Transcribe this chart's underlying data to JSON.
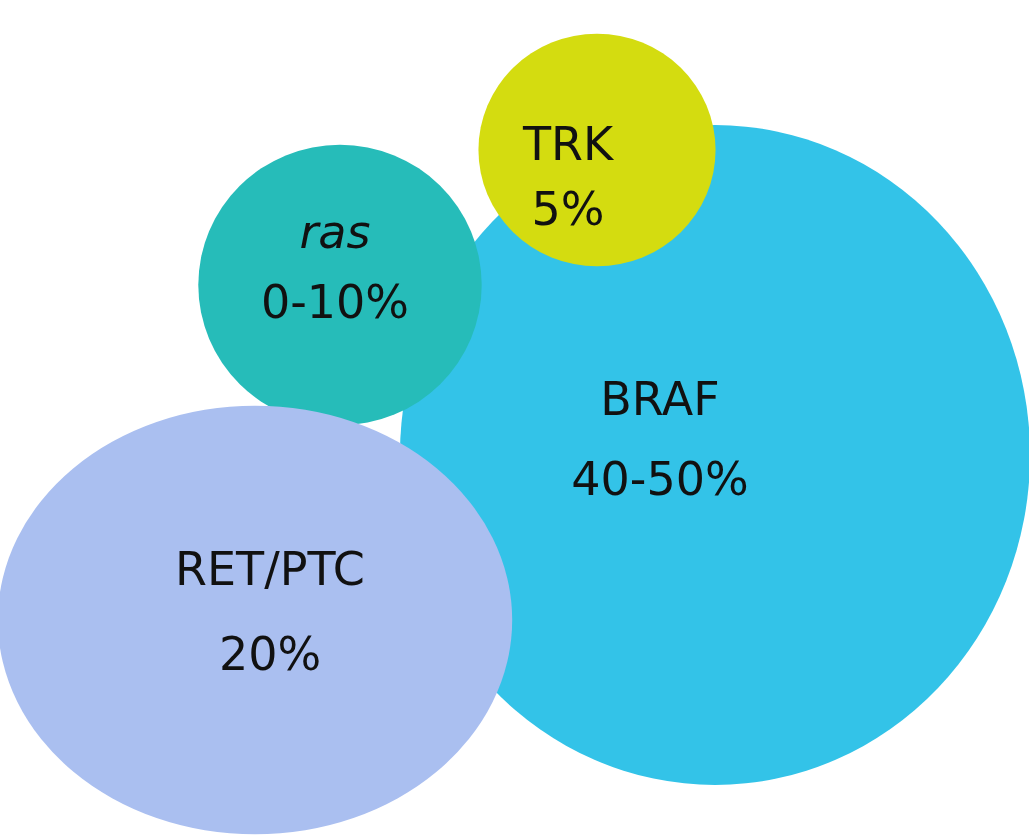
{
  "chart_data": {
    "type": "other",
    "categories": [
      "BRAF",
      "ras",
      "TRK",
      "RET/PTC"
    ],
    "values": [
      null,
      null,
      5,
      20
    ],
    "value_labels": [
      "40-50%",
      "0-10%",
      "5%",
      "20%"
    ],
    "colors": [
      "#33c3e8",
      "#26bcb9",
      "#d4dc10",
      "#aabff0"
    ]
  }
}
